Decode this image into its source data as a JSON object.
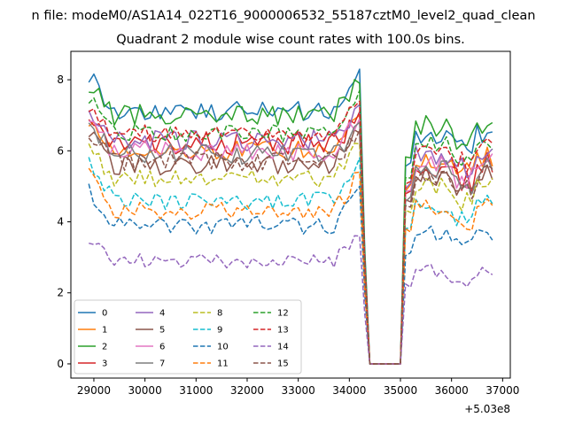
{
  "chart_data": {
    "type": "line",
    "suptitle": "n file: modeM0/AS1A14_022T16_9000006532_55187cztM0_level2_quad_clean",
    "title": "Quadrant 2 module wise count rates with 100.0s bins.",
    "xlabel": "",
    "ylabel": "",
    "x_offset_label": "+5.03e8",
    "xlim": [
      28550,
      37150
    ],
    "ylim": [
      -0.4,
      8.8
    ],
    "xticks": [
      "29000",
      "30000",
      "31000",
      "32000",
      "33000",
      "34000",
      "35000",
      "36000",
      "37000"
    ],
    "yticks": [
      "0",
      "2",
      "4",
      "6",
      "8"
    ],
    "legend_position": "lower-left",
    "legend_columns": 4,
    "x_start": 28900,
    "x_step": 100,
    "count": 80,
    "gap": {
      "start": 34200,
      "drop_to": 34400,
      "zero_until": 35000,
      "recover_end": 35200
    },
    "series": [
      {
        "name": "0",
        "color": "#1f77b4",
        "dash": "solid",
        "base1": 7.1,
        "base2": 6.5,
        "amp": 0.3,
        "edge": 8.3
      },
      {
        "name": "1",
        "color": "#ff7f0e",
        "dash": "solid",
        "base1": 6.0,
        "base2": 5.8,
        "amp": 0.3,
        "edge": 7.0
      },
      {
        "name": "2",
        "color": "#2ca02c",
        "dash": "solid",
        "base1": 7.0,
        "base2": 6.7,
        "amp": 0.3,
        "edge": 7.9
      },
      {
        "name": "3",
        "color": "#d62728",
        "dash": "solid",
        "base1": 6.2,
        "base2": 5.6,
        "amp": 0.35,
        "edge": 7.1
      },
      {
        "name": "4",
        "color": "#9467bd",
        "dash": "solid",
        "base1": 6.3,
        "base2": 5.9,
        "amp": 0.3,
        "edge": 7.3
      },
      {
        "name": "5",
        "color": "#8c564b",
        "dash": "solid",
        "base1": 5.6,
        "base2": 5.3,
        "amp": 0.3,
        "edge": 6.5
      },
      {
        "name": "6",
        "color": "#e377c2",
        "dash": "solid",
        "base1": 6.0,
        "base2": 5.7,
        "amp": 0.3,
        "edge": 6.9
      },
      {
        "name": "7",
        "color": "#7f7f7f",
        "dash": "solid",
        "base1": 5.9,
        "base2": 5.5,
        "amp": 0.3,
        "edge": 6.8
      },
      {
        "name": "8",
        "color": "#bcbd22",
        "dash": "dashed",
        "base1": 5.2,
        "base2": 5.0,
        "amp": 0.25,
        "edge": 6.2
      },
      {
        "name": "9",
        "color": "#17becf",
        "dash": "dashed",
        "base1": 4.6,
        "base2": 4.5,
        "amp": 0.25,
        "edge": 5.8
      },
      {
        "name": "10",
        "color": "#1f77b4",
        "dash": "dashed",
        "base1": 3.9,
        "base2": 3.7,
        "amp": 0.25,
        "edge": 5.0
      },
      {
        "name": "11",
        "color": "#ff7f0e",
        "dash": "dashed",
        "base1": 4.3,
        "base2": 4.4,
        "amp": 0.25,
        "edge": 5.4
      },
      {
        "name": "12",
        "color": "#2ca02c",
        "dash": "dashed",
        "base1": 6.5,
        "base2": 6.2,
        "amp": 0.25,
        "edge": 7.7
      },
      {
        "name": "13",
        "color": "#d62728",
        "dash": "dashed",
        "base1": 6.5,
        "base2": 6.1,
        "amp": 0.25,
        "edge": 7.4
      },
      {
        "name": "14",
        "color": "#9467bd",
        "dash": "dashed",
        "base1": 2.9,
        "base2": 2.6,
        "amp": 0.2,
        "edge": 3.6
      },
      {
        "name": "15",
        "color": "#8c564b",
        "dash": "dashed",
        "base1": 5.7,
        "base2": 5.3,
        "amp": 0.3,
        "edge": 6.6
      }
    ]
  }
}
